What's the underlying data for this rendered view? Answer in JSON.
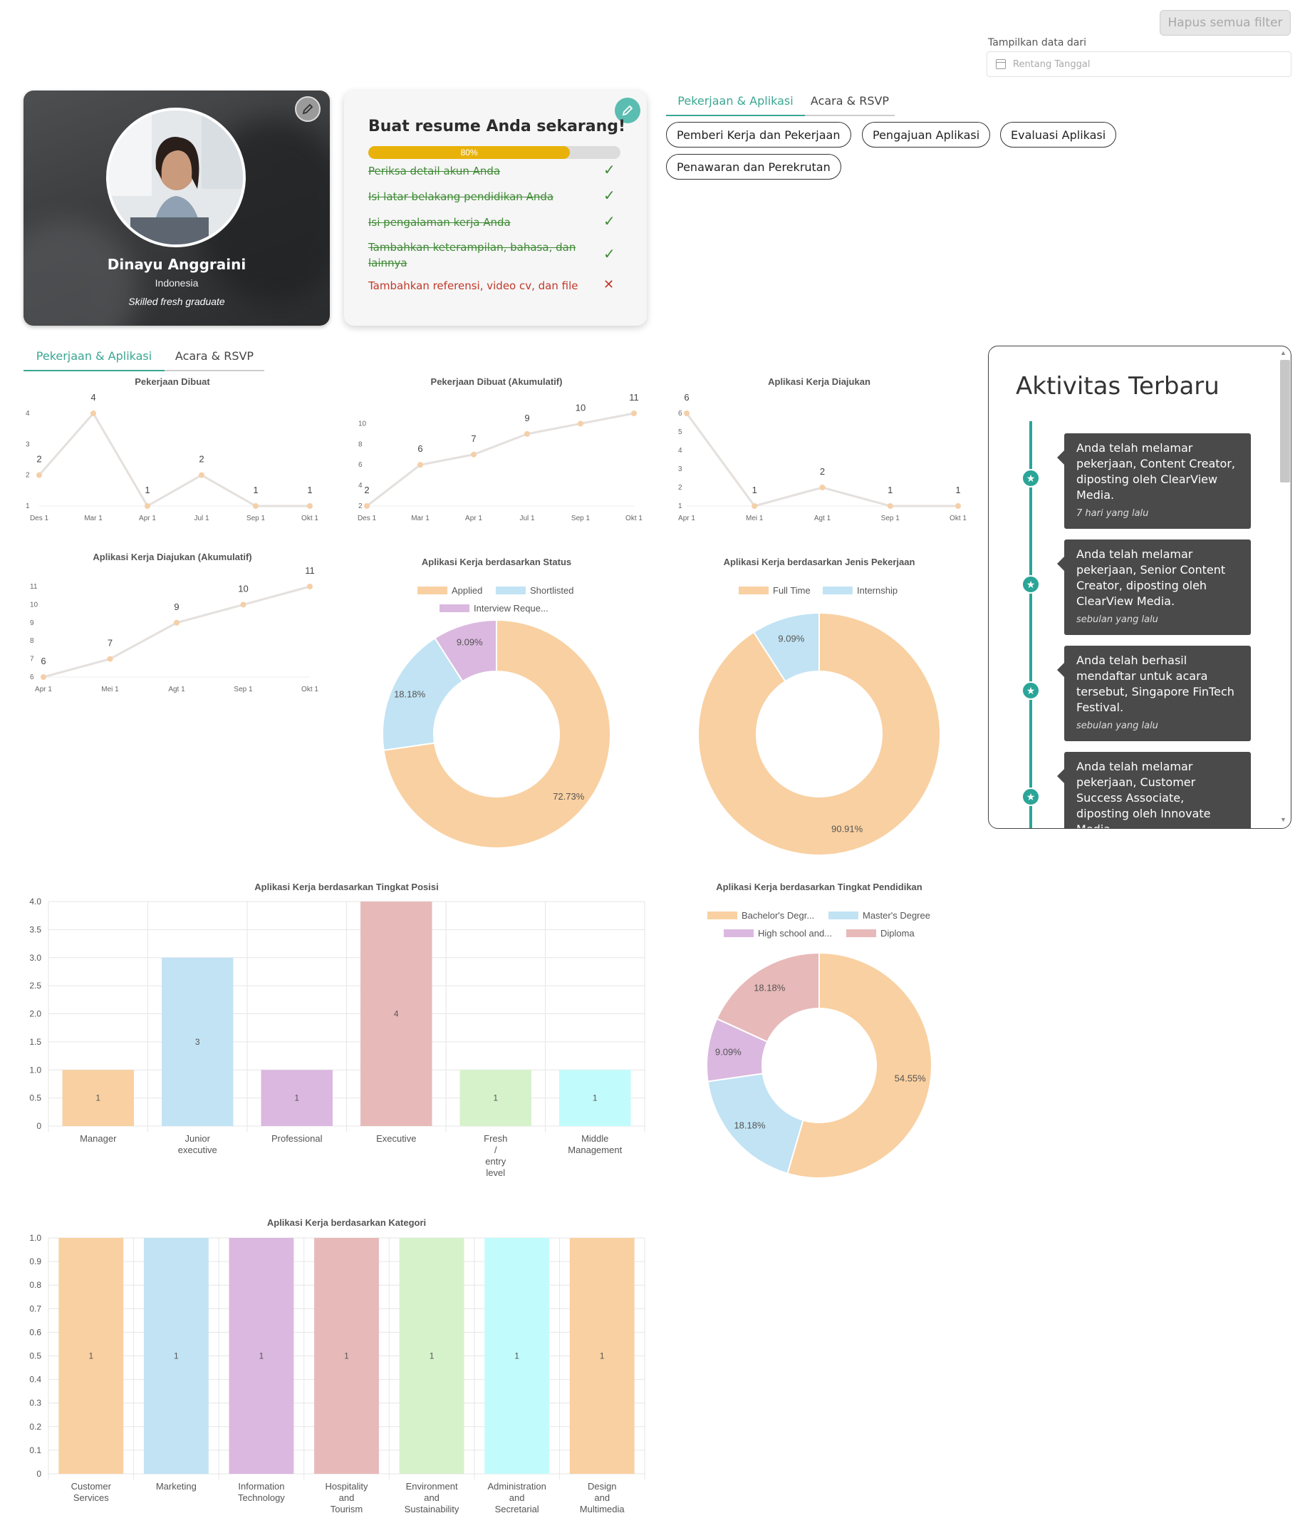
{
  "filters": {
    "clear_all": "Hapus semua filter",
    "range_label": "Tampilkan data dari",
    "range_placeholder": "Rentang Tanggal"
  },
  "profile": {
    "name": "Dinayu Anggraini",
    "country": "Indonesia",
    "tagline": "Skilled fresh graduate"
  },
  "resume": {
    "title": "Buat resume Anda sekarang!",
    "progress": 80,
    "progress_label": "80%",
    "items": [
      {
        "label": "Periksa detail akun Anda",
        "done": true
      },
      {
        "label": "Isi latar belakang pendidikan Anda",
        "done": true
      },
      {
        "label": "Isi pengalaman kerja Anda",
        "done": true
      },
      {
        "label": "Tambahkan keterampilan, bahasa, dan lainnya",
        "done": true
      },
      {
        "label": "Tambahkan referensi, video cv, dan file",
        "done": false
      }
    ],
    "check_glyph": "✓",
    "cross_glyph": "✕"
  },
  "top_tabs": [
    "Pekerjaan & Aplikasi",
    "Acara & RSVP"
  ],
  "pills": [
    "Pemberi Kerja dan Pekerjaan",
    "Pengajuan Aplikasi",
    "Evaluasi Aplikasi",
    "Penawaran dan Perekrutan"
  ],
  "chart_tabs": [
    "Pekerjaan & Aplikasi",
    "Acara & RSVP"
  ],
  "activity": {
    "title": "Aktivitas Terbaru",
    "items": [
      {
        "text": "Anda telah melamar pekerjaan, Content Creator, diposting oleh ClearView Media.",
        "time": "7 hari yang lalu"
      },
      {
        "text": "Anda telah melamar pekerjaan, Senior Content Creator, diposting oleh ClearView Media.",
        "time": "sebulan yang lalu"
      },
      {
        "text": "Anda telah berhasil mendaftar untuk acara tersebut, Singapore FinTech Festival.",
        "time": "sebulan yang lalu"
      },
      {
        "text": "Anda telah melamar pekerjaan, Customer Success Associate, diposting oleh Innovate Media.",
        "time": ""
      }
    ]
  },
  "colors": {
    "accent": "#3aa692",
    "timeline": "#2aa597",
    "line": "#e4e0dd",
    "point": "#f5cfa8",
    "palette": [
      "#f9d0a1",
      "#c1e3f4",
      "#dbb8e0",
      "#e8b9b9",
      "#d6f2cb",
      "#c2fbfb"
    ]
  },
  "chart_data": [
    {
      "type": "line",
      "title": "Pekerjaan Dibuat",
      "x": [
        "Des 1",
        "Mar 1",
        "Apr 1",
        "Jul 1",
        "Sep 1",
        "Okt 1"
      ],
      "values": [
        2,
        4,
        1,
        2,
        1,
        1
      ],
      "yticks": [
        1,
        2,
        3,
        4
      ]
    },
    {
      "type": "line",
      "title": "Pekerjaan Dibuat (Akumulatif)",
      "x": [
        "Des 1",
        "Mar 1",
        "Apr 1",
        "Jul 1",
        "Sep 1",
        "Okt 1"
      ],
      "values": [
        2,
        6,
        7,
        9,
        10,
        11
      ],
      "yticks": [
        2,
        4,
        6,
        8,
        10
      ]
    },
    {
      "type": "line",
      "title": "Aplikasi Kerja Diajukan",
      "x": [
        "Apr 1",
        "Mei 1",
        "Agt 1",
        "Sep 1",
        "Okt 1"
      ],
      "values": [
        6,
        1,
        2,
        1,
        1
      ],
      "yticks": [
        1,
        2,
        3,
        4,
        5,
        6
      ]
    },
    {
      "type": "line",
      "title": "Aplikasi Kerja Diajukan (Akumulatif)",
      "x": [
        "Apr 1",
        "Mei 1",
        "Agt 1",
        "Sep 1",
        "Okt 1"
      ],
      "values": [
        6,
        7,
        9,
        10,
        11
      ],
      "yticks": [
        6,
        7,
        8,
        9,
        10,
        11
      ]
    },
    {
      "type": "pie",
      "title": "Aplikasi Kerja berdasarkan Status",
      "labels": [
        "Applied",
        "Shortlisted",
        "Interview Reque..."
      ],
      "values": [
        72.73,
        18.18,
        9.09
      ],
      "value_labels": [
        "72.73%",
        "18.18%",
        "9.09%"
      ]
    },
    {
      "type": "pie",
      "title": "Aplikasi Kerja berdasarkan Jenis Pekerjaan",
      "labels": [
        "Full Time",
        "Internship"
      ],
      "values": [
        90.91,
        9.09
      ],
      "value_labels": [
        "90.91%",
        "9.09%"
      ]
    },
    {
      "type": "bar",
      "title": "Aplikasi Kerja berdasarkan Tingkat Posisi",
      "categories": [
        [
          "Manager"
        ],
        [
          "Junior",
          "executive"
        ],
        [
          "Professional"
        ],
        [
          "Executive"
        ],
        [
          "Fresh",
          "/",
          "entry",
          "level"
        ],
        [
          "Middle",
          "Management"
        ]
      ],
      "values": [
        1,
        3,
        1,
        4,
        1,
        1
      ],
      "value_labels": [
        "1",
        "3",
        "1",
        "4",
        "1",
        "1"
      ],
      "ylim": [
        0,
        4
      ],
      "yticks": [
        "0",
        "0.5",
        "1.0",
        "1.5",
        "2.0",
        "2.5",
        "3.0",
        "3.5",
        "4.0"
      ]
    },
    {
      "type": "pie",
      "title": "Aplikasi Kerja berdasarkan Tingkat Pendidikan",
      "labels": [
        "Bachelor's Degr...",
        "Master's Degree",
        "High school and...",
        "Diploma"
      ],
      "values": [
        54.55,
        18.18,
        9.09,
        18.18
      ],
      "value_labels": [
        "54.55%",
        "18.18%",
        "9.09%",
        "18.18%"
      ]
    },
    {
      "type": "bar",
      "title": "Aplikasi Kerja berdasarkan Kategori",
      "categories": [
        [
          "Customer",
          "Services"
        ],
        [
          "Marketing"
        ],
        [
          "Information",
          "Technology"
        ],
        [
          "Hospitality",
          "and",
          "Tourism"
        ],
        [
          "Environment",
          "and",
          "Sustainability"
        ],
        [
          "Administration",
          "and",
          "Secretarial"
        ],
        [
          "Design",
          "and",
          "Multimedia"
        ]
      ],
      "values": [
        1,
        1,
        1,
        1,
        1,
        1,
        1
      ],
      "value_labels": [
        "1",
        "1",
        "1",
        "1",
        "1",
        "1",
        "1"
      ],
      "ylim": [
        0,
        1
      ],
      "yticks": [
        "0",
        "0.1",
        "0.2",
        "0.3",
        "0.4",
        "0.5",
        "0.6",
        "0.7",
        "0.8",
        "0.9",
        "1.0"
      ]
    }
  ]
}
